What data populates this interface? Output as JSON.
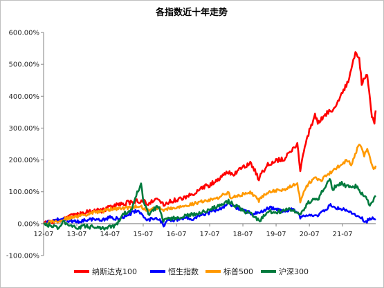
{
  "chart_data": {
    "type": "line",
    "title": "各指数近十年走势",
    "xlabel": "",
    "ylabel": "",
    "ylim": [
      -100,
      600
    ],
    "y_ticks": [
      -100,
      0,
      100,
      200,
      300,
      400,
      500,
      600
    ],
    "y_tick_labels": [
      "-100.00%",
      "0.00%",
      "100.00%",
      "200.00%",
      "300.00%",
      "400.00%",
      "500.00%",
      "600.00%"
    ],
    "x_range": [
      "2012-07-01",
      "2022-06-30"
    ],
    "x_ticks": [
      "2012-07-01",
      "2013-07-01",
      "2014-07-01",
      "2015-07-01",
      "2016-07-01",
      "2017-07-01",
      "2018-07-01",
      "2019-07-01",
      "2020-07-01",
      "2021-07-01"
    ],
    "x_tick_labels": [
      "12-07",
      "13-07",
      "14-07",
      "15-07",
      "16-07",
      "17-07",
      "18-07",
      "19-07",
      "20-07",
      "21-07"
    ],
    "grid": false,
    "legend_position": "bottom",
    "series": [
      {
        "name": "纳斯达克100",
        "color": "#ff0000",
        "x": [
          "2012-07-01",
          "2012-10-01",
          "2013-01-01",
          "2013-04-01",
          "2013-07-01",
          "2013-10-01",
          "2014-01-01",
          "2014-04-01",
          "2014-07-01",
          "2014-10-01",
          "2015-01-01",
          "2015-04-01",
          "2015-07-01",
          "2015-08-25",
          "2015-10-01",
          "2016-01-01",
          "2016-02-11",
          "2016-04-01",
          "2016-07-01",
          "2016-10-01",
          "2017-01-01",
          "2017-04-01",
          "2017-07-01",
          "2017-10-01",
          "2018-01-01",
          "2018-04-01",
          "2018-07-01",
          "2018-09-30",
          "2018-12-24",
          "2019-01-31",
          "2019-04-01",
          "2019-07-01",
          "2019-10-01",
          "2020-01-01",
          "2020-02-19",
          "2020-03-23",
          "2020-05-01",
          "2020-07-01",
          "2020-09-01",
          "2020-10-01",
          "2021-01-01",
          "2021-04-01",
          "2021-07-01",
          "2021-09-01",
          "2021-11-19",
          "2021-12-31",
          "2022-01-27",
          "2022-03-29",
          "2022-05-20",
          "2022-06-16",
          "2022-06-30"
        ],
        "values": [
          0,
          6,
          10,
          20,
          28,
          35,
          42,
          40,
          52,
          60,
          65,
          70,
          73,
          60,
          72,
          75,
          57,
          68,
          75,
          80,
          95,
          112,
          122,
          138,
          162,
          155,
          180,
          190,
          140,
          160,
          185,
          198,
          205,
          232,
          250,
          168,
          230,
          292,
          340,
          318,
          345,
          362,
          415,
          445,
          535,
          520,
          440,
          470,
          340,
          320,
          355
        ]
      },
      {
        "name": "恒生指数",
        "color": "#0000ff",
        "x": [
          "2012-07-01",
          "2012-10-01",
          "2013-01-01",
          "2013-04-01",
          "2013-07-01",
          "2013-10-01",
          "2014-01-01",
          "2014-04-01",
          "2014-07-01",
          "2014-10-01",
          "2015-01-01",
          "2015-04-28",
          "2015-07-08",
          "2015-09-01",
          "2015-10-01",
          "2016-01-01",
          "2016-02-11",
          "2016-04-01",
          "2016-07-01",
          "2016-10-01",
          "2017-01-01",
          "2017-04-01",
          "2017-07-01",
          "2017-10-01",
          "2018-01-26",
          "2018-04-01",
          "2018-07-01",
          "2018-10-30",
          "2019-01-01",
          "2019-04-15",
          "2019-07-01",
          "2019-10-01",
          "2020-01-17",
          "2020-03-23",
          "2020-07-01",
          "2020-10-01",
          "2021-01-01",
          "2021-02-18",
          "2021-04-01",
          "2021-07-01",
          "2021-10-01",
          "2022-01-01",
          "2022-03-15",
          "2022-04-15",
          "2022-05-15",
          "2022-06-30"
        ],
        "values": [
          0,
          8,
          15,
          10,
          5,
          12,
          15,
          10,
          20,
          15,
          25,
          42,
          22,
          10,
          15,
          12,
          -5,
          10,
          12,
          18,
          15,
          25,
          35,
          45,
          62,
          52,
          42,
          30,
          35,
          50,
          45,
          40,
          45,
          20,
          28,
          25,
          45,
          58,
          52,
          45,
          35,
          25,
          5,
          12,
          18,
          12
        ]
      },
      {
        "name": "标普500",
        "color": "#ff9900",
        "x": [
          "2012-07-01",
          "2012-10-01",
          "2013-01-01",
          "2013-04-01",
          "2013-07-01",
          "2013-10-01",
          "2014-01-01",
          "2014-04-01",
          "2014-07-01",
          "2014-10-01",
          "2015-01-01",
          "2015-05-21",
          "2015-08-25",
          "2015-10-01",
          "2016-01-01",
          "2016-02-11",
          "2016-04-01",
          "2016-07-01",
          "2016-10-01",
          "2017-01-01",
          "2017-04-01",
          "2017-07-01",
          "2017-10-01",
          "2018-01-26",
          "2018-02-08",
          "2018-04-01",
          "2018-07-01",
          "2018-09-20",
          "2018-12-24",
          "2019-01-31",
          "2019-04-01",
          "2019-07-01",
          "2019-10-01",
          "2020-01-01",
          "2020-02-19",
          "2020-03-23",
          "2020-05-01",
          "2020-07-01",
          "2020-09-01",
          "2020-10-30",
          "2021-01-01",
          "2021-04-01",
          "2021-07-01",
          "2021-09-01",
          "2021-10-04",
          "2021-12-31",
          "2022-02-24",
          "2022-03-29",
          "2022-05-20",
          "2022-06-16",
          "2022-06-30"
        ],
        "values": [
          0,
          5,
          10,
          18,
          22,
          28,
          35,
          38,
          45,
          48,
          50,
          55,
          42,
          48,
          50,
          38,
          48,
          52,
          55,
          62,
          70,
          75,
          82,
          98,
          82,
          85,
          92,
          100,
          72,
          85,
          98,
          105,
          108,
          122,
          128,
          70,
          105,
          128,
          145,
          135,
          150,
          170,
          190,
          200,
          185,
          250,
          215,
          235,
          180,
          170,
          182
        ]
      },
      {
        "name": "沪深300",
        "color": "#007a3d",
        "x": [
          "2012-07-01",
          "2012-09-01",
          "2012-12-03",
          "2013-02-06",
          "2013-06-25",
          "2013-09-01",
          "2013-12-01",
          "2014-03-01",
          "2014-06-01",
          "2014-09-01",
          "2014-12-01",
          "2015-03-01",
          "2015-04-15",
          "2015-06-08",
          "2015-07-08",
          "2015-08-26",
          "2015-10-01",
          "2015-12-22",
          "2016-01-28",
          "2016-04-01",
          "2016-07-01",
          "2016-10-01",
          "2017-01-01",
          "2017-04-01",
          "2017-07-01",
          "2017-10-01",
          "2018-01-24",
          "2018-04-01",
          "2018-07-01",
          "2018-10-01",
          "2019-01-03",
          "2019-04-19",
          "2019-06-01",
          "2019-09-01",
          "2019-12-01",
          "2020-03-20",
          "2020-07-01",
          "2020-10-01",
          "2021-02-10",
          "2021-03-15",
          "2021-06-01",
          "2021-09-01",
          "2021-12-01",
          "2022-01-01",
          "2022-03-15",
          "2022-04-26",
          "2022-06-01",
          "2022-06-30"
        ],
        "values": [
          0,
          -5,
          -12,
          5,
          -15,
          -8,
          -10,
          -15,
          -12,
          -5,
          30,
          45,
          90,
          120,
          65,
          30,
          40,
          55,
          10,
          15,
          18,
          25,
          30,
          35,
          45,
          55,
          70,
          60,
          40,
          30,
          10,
          40,
          35,
          38,
          45,
          28,
          70,
          75,
          140,
          110,
          128,
          115,
          118,
          105,
          80,
          55,
          72,
          88
        ]
      }
    ]
  }
}
